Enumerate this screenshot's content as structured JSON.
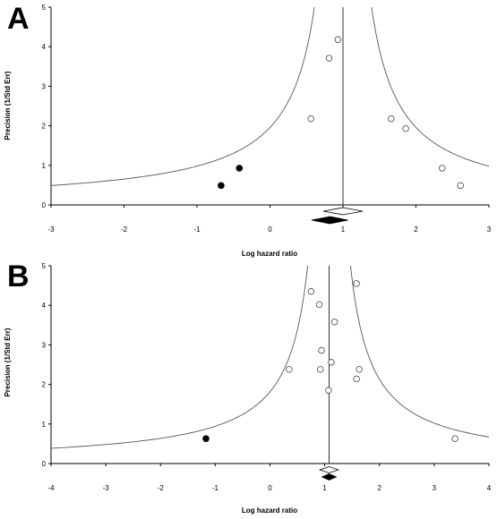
{
  "chart_data": [
    {
      "type": "scatter",
      "panel_label": "A",
      "xlabel": "Log hazard ratio",
      "ylabel": "Precision (1/Std Err)",
      "xlim": [
        -3,
        3
      ],
      "ylim": [
        0,
        5
      ],
      "x_ticks": [
        -3,
        -2,
        -1,
        0,
        1,
        2,
        3
      ],
      "y_ticks": [
        0,
        1,
        2,
        3,
        4,
        5
      ],
      "pooled_estimate": 1.0,
      "series": [
        {
          "style": "open",
          "points": [
            [
              0.93,
              4.18
            ],
            [
              0.81,
              3.71
            ],
            [
              0.56,
              2.18
            ],
            [
              1.66,
              2.18
            ],
            [
              1.86,
              1.93
            ],
            [
              2.36,
              0.93
            ],
            [
              2.61,
              0.49
            ]
          ]
        },
        {
          "style": "filled",
          "points": [
            [
              -0.42,
              0.93
            ],
            [
              -0.67,
              0.49
            ]
          ]
        }
      ],
      "diamonds": [
        {
          "style": "open",
          "center": 1.0,
          "half_width": 0.27
        },
        {
          "style": "filled",
          "center": 0.82,
          "half_width": 0.25
        }
      ]
    },
    {
      "type": "scatter",
      "panel_label": "B",
      "xlabel": "Log hazard ratio",
      "ylabel": "Precision (1/Std Err)",
      "xlim": [
        -4,
        4
      ],
      "ylim": [
        0,
        5
      ],
      "x_ticks": [
        -4,
        -3,
        -2,
        -1,
        0,
        1,
        2,
        3,
        4
      ],
      "y_ticks": [
        0,
        1,
        2,
        3,
        4,
        5
      ],
      "pooled_estimate": 1.08,
      "series": [
        {
          "style": "open",
          "points": [
            [
              0.75,
              4.35
            ],
            [
              0.9,
              4.02
            ],
            [
              1.58,
              4.55
            ],
            [
              1.18,
              3.58
            ],
            [
              0.94,
              2.86
            ],
            [
              1.12,
              2.56
            ],
            [
              0.92,
              2.38
            ],
            [
              0.35,
              2.38
            ],
            [
              1.63,
              2.38
            ],
            [
              1.58,
              2.14
            ],
            [
              1.07,
              1.85
            ],
            [
              3.38,
              0.63
            ]
          ]
        },
        {
          "style": "filled",
          "points": [
            [
              -1.17,
              0.63
            ]
          ]
        }
      ],
      "diamonds": [
        {
          "style": "open",
          "center": 1.08,
          "half_width": 0.17
        },
        {
          "style": "filled",
          "center": 1.08,
          "half_width": 0.13
        }
      ]
    }
  ]
}
